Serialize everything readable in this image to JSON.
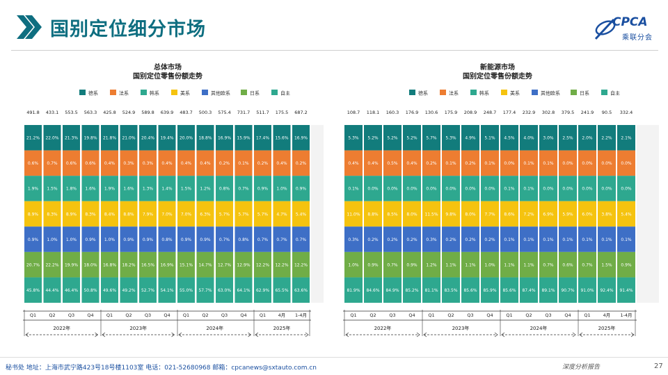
{
  "header": {
    "title": "国别定位细分市场",
    "logo_main": "CPCA",
    "logo_sub": "乘联分会"
  },
  "legend_labels": [
    "德系",
    "法系",
    "韩系",
    "美系",
    "其他欧系",
    "日系",
    "自主"
  ],
  "colors": {
    "德系": "#127c7c",
    "法系": "#ed7d31",
    "韩系": "#2ea88f",
    "美系": "#f5c30f",
    "其他欧系": "#3e6fc6",
    "日系": "#70ad47",
    "自主": "#2ea88f",
    "title": "#0e6e80"
  },
  "chart_data": [
    {
      "type": "bar",
      "stacked": true,
      "title": "总体市场",
      "subtitle": "国别定位零售份额走势",
      "categories": [
        "Q1",
        "Q2",
        "Q3",
        "Q4",
        "Q1",
        "Q2",
        "Q3",
        "Q4",
        "Q1",
        "Q2",
        "Q3",
        "Q4",
        "Q1",
        "4月",
        "1-4月"
      ],
      "year_groups": [
        {
          "label": "2022年",
          "count": 4
        },
        {
          "label": "2023年",
          "count": 4
        },
        {
          "label": "2024年",
          "count": 4
        },
        {
          "label": "2025年",
          "count": 3
        }
      ],
      "totals": [
        "491.8",
        "433.1",
        "553.5",
        "563.3",
        "425.8",
        "524.9",
        "589.8",
        "639.9",
        "483.7",
        "500.3",
        "575.4",
        "731.7",
        "511.7",
        "175.5",
        "687.2"
      ],
      "series": [
        {
          "name": "德系",
          "values": [
            "21.2%",
            "22.0%",
            "21.3%",
            "19.8%",
            "21.8%",
            "21.0%",
            "20.4%",
            "19.4%",
            "20.0%",
            "18.8%",
            "16.9%",
            "15.9%",
            "17.4%",
            "15.6%",
            "16.9%"
          ]
        },
        {
          "name": "法系",
          "values": [
            "0.6%",
            "0.7%",
            "0.6%",
            "0.6%",
            "0.4%",
            "0.3%",
            "0.3%",
            "0.4%",
            "0.4%",
            "0.4%",
            "0.2%",
            "0.1%",
            "0.2%",
            "0.4%",
            "0.2%"
          ]
        },
        {
          "name": "韩系",
          "values": [
            "1.9%",
            "1.5%",
            "1.8%",
            "1.6%",
            "1.9%",
            "1.6%",
            "1.3%",
            "1.4%",
            "1.5%",
            "1.2%",
            "0.8%",
            "0.7%",
            "0.9%",
            "1.0%",
            "0.9%"
          ]
        },
        {
          "name": "美系",
          "values": [
            "8.9%",
            "8.3%",
            "8.9%",
            "8.3%",
            "8.4%",
            "8.8%",
            "7.9%",
            "7.0%",
            "7.0%",
            "6.3%",
            "5.7%",
            "5.7%",
            "5.7%",
            "4.7%",
            "5.4%"
          ]
        },
        {
          "name": "其他欧系",
          "values": [
            "0.9%",
            "1.0%",
            "1.0%",
            "0.9%",
            "1.0%",
            "0.9%",
            "0.9%",
            "0.8%",
            "0.9%",
            "0.9%",
            "0.7%",
            "0.8%",
            "0.7%",
            "0.7%",
            "0.7%"
          ]
        },
        {
          "name": "日系",
          "values": [
            "20.7%",
            "22.2%",
            "19.9%",
            "18.0%",
            "16.8%",
            "18.2%",
            "16.5%",
            "16.9%",
            "15.1%",
            "14.7%",
            "12.7%",
            "12.9%",
            "12.2%",
            "12.2%",
            "12.2%"
          ]
        },
        {
          "name": "自主",
          "values": [
            "45.8%",
            "44.4%",
            "46.4%",
            "50.8%",
            "49.6%",
            "49.2%",
            "52.7%",
            "54.1%",
            "55.0%",
            "57.7%",
            "63.0%",
            "64.1%",
            "62.9%",
            "65.5%",
            "63.6%"
          ]
        }
      ]
    },
    {
      "type": "bar",
      "stacked": true,
      "title": "新能源市场",
      "subtitle": "国别定位零售份额走势",
      "categories": [
        "Q1",
        "Q2",
        "Q3",
        "Q4",
        "Q1",
        "Q2",
        "Q3",
        "Q4",
        "Q1",
        "Q2",
        "Q3",
        "Q4",
        "Q1",
        "4月",
        "1-4月"
      ],
      "year_groups": [
        {
          "label": "2022年",
          "count": 4
        },
        {
          "label": "2023年",
          "count": 4
        },
        {
          "label": "2024年",
          "count": 4
        },
        {
          "label": "2025年",
          "count": 3
        }
      ],
      "totals": [
        "108.7",
        "118.1",
        "160.3",
        "176.9",
        "130.6",
        "175.9",
        "208.9",
        "248.7",
        "177.4",
        "232.9",
        "302.8",
        "379.5",
        "241.9",
        "90.5",
        "332.4"
      ],
      "series": [
        {
          "name": "德系",
          "values": [
            "5.3%",
            "5.2%",
            "5.2%",
            "5.2%",
            "5.7%",
            "5.3%",
            "4.9%",
            "5.1%",
            "4.5%",
            "4.0%",
            "3.0%",
            "2.5%",
            "2.0%",
            "2.2%",
            "2.1%"
          ]
        },
        {
          "name": "法系",
          "values": [
            "0.4%",
            "0.4%",
            "0.5%",
            "0.4%",
            "0.2%",
            "0.1%",
            "0.2%",
            "0.1%",
            "0.0%",
            "0.1%",
            "0.1%",
            "0.0%",
            "0.0%",
            "0.0%",
            "0.0%"
          ]
        },
        {
          "name": "韩系",
          "values": [
            "0.1%",
            "0.0%",
            "0.0%",
            "0.0%",
            "0.0%",
            "0.0%",
            "0.0%",
            "0.0%",
            "0.1%",
            "0.1%",
            "0.0%",
            "0.0%",
            "0.0%",
            "0.0%",
            "0.0%"
          ]
        },
        {
          "name": "美系",
          "values": [
            "11.0%",
            "8.8%",
            "8.5%",
            "8.0%",
            "11.5%",
            "9.8%",
            "8.0%",
            "7.7%",
            "8.6%",
            "7.2%",
            "6.9%",
            "5.9%",
            "6.0%",
            "3.8%",
            "5.4%"
          ]
        },
        {
          "name": "其他欧系",
          "values": [
            "0.3%",
            "0.2%",
            "0.2%",
            "0.2%",
            "0.3%",
            "0.2%",
            "0.2%",
            "0.2%",
            "0.1%",
            "0.1%",
            "0.1%",
            "0.1%",
            "0.1%",
            "0.1%",
            "0.1%"
          ]
        },
        {
          "name": "日系",
          "values": [
            "1.0%",
            "0.9%",
            "0.7%",
            "0.9%",
            "1.2%",
            "1.1%",
            "1.1%",
            "1.0%",
            "1.1%",
            "1.1%",
            "0.7%",
            "0.6%",
            "0.7%",
            "1.5%",
            "0.9%"
          ]
        },
        {
          "name": "自主",
          "values": [
            "81.9%",
            "84.6%",
            "84.9%",
            "85.2%",
            "81.1%",
            "83.5%",
            "85.6%",
            "85.9%",
            "85.6%",
            "87.4%",
            "89.1%",
            "90.7%",
            "91.0%",
            "92.4%",
            "91.4%"
          ]
        }
      ]
    }
  ],
  "footer": {
    "address": "秘书处   地址：上海市武宁路423号18号楼1103室   电话：021-52680968   邮箱：cpcanews@sxtauto.com.cn",
    "tag": "深度分析报告",
    "page": "27"
  }
}
